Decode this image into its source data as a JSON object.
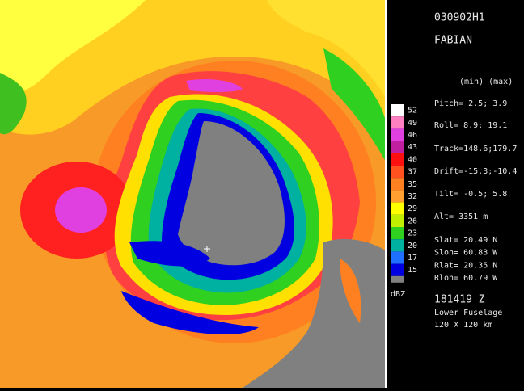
{
  "header": {
    "flight": "030902H1",
    "storm": "FABIAN",
    "columns": "(min) (max)"
  },
  "parameters": [
    "Pitch=  2.5;  3.9",
    "Roll=   8.9; 19.1",
    "Track=148.6;179.7",
    "Drift=-15.3;-10.4",
    "Tilt=  -0.5;  5.8",
    "Alt=  3351 m"
  ],
  "positions": [
    "Slat=    20.49 N",
    "Slon=    60.83 W",
    "Rlat=    20.35 N",
    "Rlon=    60.79 W"
  ],
  "footer": {
    "time": "181419 Z",
    "radar": "Lower Fuselage",
    "range": "120 X 120 km"
  },
  "colorbar": {
    "unit": "dBZ",
    "levels": [
      {
        "label": 52,
        "color": "#ffffff"
      },
      {
        "label": 49,
        "color": "#ff80c0"
      },
      {
        "label": 46,
        "color": "#e040e0"
      },
      {
        "label": 43,
        "color": "#c020a0"
      },
      {
        "label": 40,
        "color": "#ff1010"
      },
      {
        "label": 37,
        "color": "#ff5020"
      },
      {
        "label": 35,
        "color": "#ff8020"
      },
      {
        "label": 32,
        "color": "#ffa030"
      },
      {
        "label": 29,
        "color": "#ffff00"
      },
      {
        "label": 26,
        "color": "#c0f000"
      },
      {
        "label": 23,
        "color": "#30d020"
      },
      {
        "label": 20,
        "color": "#00b0a0"
      },
      {
        "label": 17,
        "color": "#2070ff"
      },
      {
        "label": 15,
        "color": "#0000e0"
      }
    ]
  }
}
